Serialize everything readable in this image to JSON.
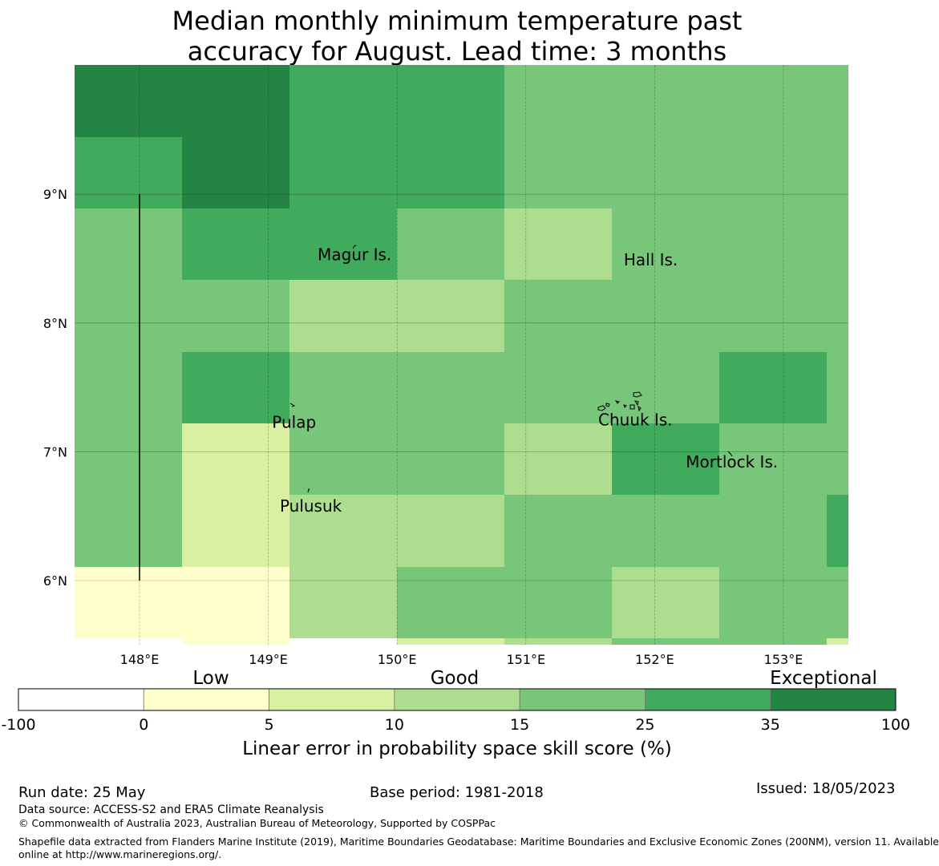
{
  "title": {
    "line1": "Median monthly minimum temperature past",
    "line2": "accuracy for August. Lead time: 3 months"
  },
  "map": {
    "lon_range": [
      147.5,
      153.5
    ],
    "lat_range": [
      5.5,
      10.0
    ],
    "cell_size_deg": 0.833,
    "lon_ticks": [
      148,
      149,
      150,
      151,
      152,
      153
    ],
    "lon_tick_labels": [
      "148°E",
      "149°E",
      "150°E",
      "151°E",
      "152°E",
      "153°E"
    ],
    "lat_ticks": [
      9,
      8,
      7,
      6
    ],
    "lat_tick_labels": [
      "9°N",
      "8°N",
      "7°N",
      "6°N"
    ],
    "grid": true,
    "note_grid": "skill-score category index per cell, rows listed top (north) to bottom (south), columns west to east",
    "score_grid": [
      [
        6,
        6,
        5,
        5,
        4,
        4,
        4,
        4
      ],
      [
        5,
        6,
        5,
        5,
        4,
        4,
        4,
        4
      ],
      [
        4,
        5,
        5,
        4,
        3,
        4,
        4,
        4
      ],
      [
        4,
        4,
        3,
        3,
        4,
        4,
        4,
        4
      ],
      [
        4,
        5,
        4,
        4,
        4,
        4,
        5,
        4
      ],
      [
        4,
        2,
        4,
        4,
        3,
        5,
        4,
        4
      ],
      [
        4,
        2,
        3,
        3,
        4,
        4,
        4,
        5
      ],
      [
        1,
        1,
        3,
        4,
        4,
        3,
        4,
        4
      ],
      [
        0,
        1,
        0,
        2,
        3,
        4,
        4,
        2
      ]
    ],
    "places": [
      {
        "name": "Magur Is.",
        "lon": 149.67,
        "lat": 8.53
      },
      {
        "name": "Hall Is.",
        "lon": 151.97,
        "lat": 8.49
      },
      {
        "name": "Pulap",
        "lon": 149.2,
        "lat": 7.23
      },
      {
        "name": "Chuuk Is.",
        "lon": 151.85,
        "lat": 7.25
      },
      {
        "name": "Mortlock Is.",
        "lon": 152.6,
        "lat": 6.92
      },
      {
        "name": "Pulusuk",
        "lon": 149.33,
        "lat": 6.58
      }
    ],
    "boundary_line": {
      "lon": 148.0,
      "lat_from": 6.0,
      "lat_to": 9.0
    }
  },
  "legend": {
    "category_labels": [
      "Low",
      "Good",
      "Exceptional"
    ],
    "ticks": [
      "-100",
      "0",
      "5",
      "10",
      "15",
      "25",
      "35",
      "100"
    ],
    "bins": [
      {
        "from": "-100",
        "to": "0",
        "color": "#ffffff"
      },
      {
        "from": "0",
        "to": "5",
        "color": "#ffffcc"
      },
      {
        "from": "5",
        "to": "10",
        "color": "#d9f0a3"
      },
      {
        "from": "10",
        "to": "15",
        "color": "#addd8e"
      },
      {
        "from": "15",
        "to": "25",
        "color": "#78c679"
      },
      {
        "from": "25",
        "to": "35",
        "color": "#41ab5d"
      },
      {
        "from": "35",
        "to": "100",
        "color": "#238443"
      }
    ],
    "label": "Linear error in probability space skill score (%)"
  },
  "footer": {
    "run_date": "Run date: 25 May",
    "base_period": "Base period: 1981-2018",
    "issued": "Issued: 18/05/2023",
    "data_source": "Data source: ACCESS-S2 and ERA5 Climate Reanalysis",
    "copyright": "© Commonwealth of Australia 2023, Australian Bureau of Meteorology, Supported by COSPPac",
    "shapefile_line1": "Shapefile data extracted from Flanders Marine Institute (2019), Maritime Boundaries Geodatabase: Maritime Boundaries and Exclusive Economic Zones (200NM), version 11. Available",
    "shapefile_line2": "online at http://www.marineregions.org/."
  }
}
